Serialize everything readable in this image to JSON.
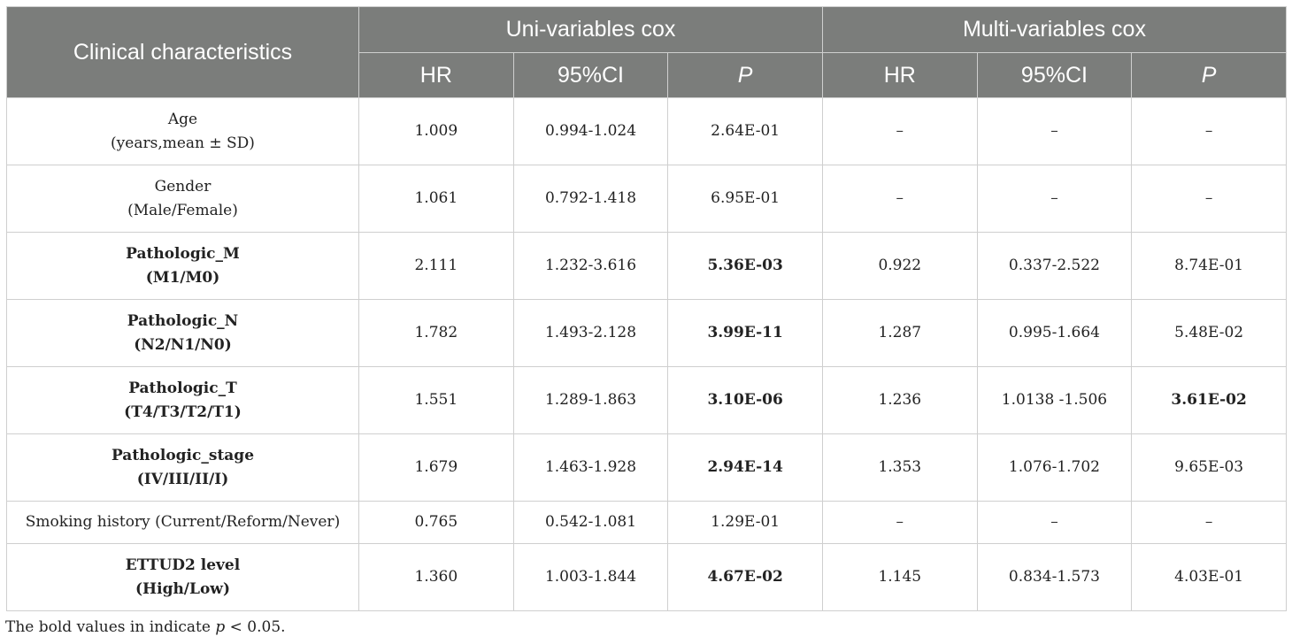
{
  "header": {
    "clinical": "Clinical characteristics",
    "uni_group": "Uni-variables cox",
    "multi_group": "Multi-variables cox",
    "hr": "HR",
    "ci": "95%CI",
    "p": "P"
  },
  "rows": [
    {
      "line1": "Age",
      "line2": "(years,mean ± SD)",
      "u_hr": "1.009",
      "u_ci": "0.994-1.024",
      "u_p": "2.64E-01",
      "m_hr": "–",
      "m_ci": "–",
      "m_p": "–"
    },
    {
      "line1": "Gender",
      "line2": "(Male/Female)",
      "u_hr": "1.061",
      "u_ci": "0.792-1.418",
      "u_p": "6.95E-01",
      "m_hr": "–",
      "m_ci": "–",
      "m_p": "–"
    },
    {
      "line1": "Pathologic_M",
      "line2": "(M1/M0)",
      "u_hr": "2.111",
      "u_ci": "1.232-3.616",
      "u_p": "5.36E-03",
      "m_hr": "0.922",
      "m_ci": "0.337-2.522",
      "m_p": "8.74E-01"
    },
    {
      "line1": "Pathologic_N",
      "line2": "(N2/N1/N0)",
      "u_hr": "1.782",
      "u_ci": "1.493-2.128",
      "u_p": "3.99E-11",
      "m_hr": "1.287",
      "m_ci": "0.995-1.664",
      "m_p": "5.48E-02"
    },
    {
      "line1": "Pathologic_T",
      "line2": "(T4/T3/T2/T1)",
      "u_hr": "1.551",
      "u_ci": "1.289-1.863",
      "u_p": "3.10E-06",
      "m_hr": "1.236",
      "m_ci": "1.0138 -1.506",
      "m_p": "3.61E-02"
    },
    {
      "line1": "Pathologic_stage",
      "line2": "(IV/III/II/I)",
      "u_hr": "1.679",
      "u_ci": "1.463-1.928",
      "u_p": "2.94E-14",
      "m_hr": "1.353",
      "m_ci": "1.076-1.702",
      "m_p": "9.65E-03"
    },
    {
      "line1": "Smoking history (Current/Reform/Never)",
      "u_hr": "0.765",
      "u_ci": "0.542-1.081",
      "u_p": "1.29E-01",
      "m_hr": "–",
      "m_ci": "–",
      "m_p": "–"
    },
    {
      "line1": "ETTUD2 level",
      "line2": "(High/Low)",
      "u_hr": "1.360",
      "u_ci": "1.003-1.844",
      "u_p": "4.67E-02",
      "m_hr": "1.145",
      "m_ci": "0.834-1.573",
      "m_p": "4.03E-01"
    }
  ],
  "footnote": {
    "text": "The bold values in indicate",
    "p_symbol": "p",
    "threshold": "< 0.05."
  }
}
